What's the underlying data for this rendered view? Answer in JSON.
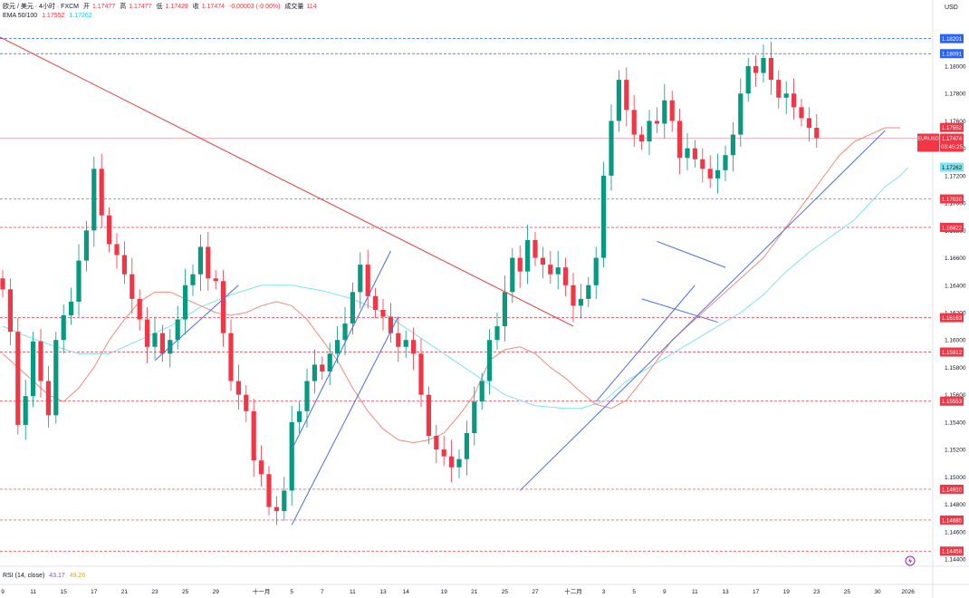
{
  "header": {
    "symbol": "欧元 / 美元 · 4小时 · FXCM",
    "open_label": "开",
    "open": "1.17477",
    "high_label": "高",
    "high": "1.17477",
    "low_label": "低",
    "low": "1.17429",
    "close_label": "收",
    "close": "1.17474",
    "change": "-0.00003 (-0.00%)",
    "volume_label": "成交量",
    "volume": "114",
    "ema_label": "EMA 50/100",
    "ema50": "1.17552",
    "ema100": "1.17262",
    "currency": "USD"
  },
  "rsi": {
    "label": "RSI (14, close)",
    "v1": "43.17",
    "v2": "49.26"
  },
  "colors": {
    "up": "#089981",
    "down": "#f23645",
    "ema50": "#f28b7c",
    "ema100": "#7fe3ee",
    "trend": "#4a6cf0",
    "downtrend": "#e83a3a",
    "blue_tag": "#2962ff"
  },
  "chart_data": {
    "type": "candlestick",
    "symbol": "EURUSD",
    "timeframe": "4小时",
    "ylim": [
      1.1435,
      1.1835
    ],
    "y_ticks": [
      "1.18000",
      "1.17800",
      "1.17600",
      "1.17400",
      "1.17200",
      "1.17000",
      "1.16800",
      "1.16600",
      "1.16400",
      "1.16200",
      "1.16000",
      "1.15800",
      "1.15600",
      "1.15400",
      "1.15200",
      "1.15000",
      "1.14800",
      "1.14600",
      "1.14400"
    ],
    "x_ticks": [
      "9",
      "11",
      "15",
      "17",
      "21",
      "23",
      "25",
      "29",
      "十一月",
      "5",
      "7",
      "11",
      "13",
      "14",
      "19",
      "21",
      "25",
      "27",
      "十二月",
      "3",
      "5",
      "9",
      "11",
      "13",
      "17",
      "19",
      "23",
      "25",
      "30",
      "2026"
    ],
    "x_tick_values": [
      0,
      4,
      8,
      12,
      16,
      20,
      24,
      28,
      34,
      38,
      42,
      46,
      50,
      53,
      58,
      62,
      66,
      70,
      75,
      79,
      83,
      87,
      91,
      95,
      99,
      103,
      107,
      111,
      115,
      119
    ],
    "current_price": {
      "symbol": "EURUSD",
      "price": "1.17474",
      "countdown": "03:45:25"
    },
    "ema_tags": [
      {
        "name": "EMA 50",
        "value": "1.17552"
      },
      {
        "name": "EMA 100",
        "value": "1.17262"
      }
    ],
    "levels": [
      {
        "value": 1.18201,
        "label": "1.18201",
        "color": "#2962ff"
      },
      {
        "value": 1.18091,
        "label": "1.18091",
        "color": "#2962ff"
      },
      {
        "value": 1.1703,
        "label": "1.17030",
        "color": "#f23645"
      },
      {
        "value": 1.16822,
        "label": "1.16822",
        "color": "#f23645"
      },
      {
        "value": 1.16163,
        "label": "1.16163",
        "color": "#f23645"
      },
      {
        "value": 1.15912,
        "label": "1.15912",
        "color": "#f23645"
      },
      {
        "value": 1.15553,
        "label": "1.15553",
        "color": "#f23645"
      },
      {
        "value": 1.1491,
        "label": "1.14910",
        "color": "#f23645"
      },
      {
        "value": 1.14685,
        "label": "1.14685",
        "color": "#f23645"
      },
      {
        "value": 1.14458,
        "label": "1.14458",
        "color": "#f23645"
      }
    ],
    "closes": [
      1.1637,
      1.1606,
      1.1538,
      1.1559,
      1.1599,
      1.157,
      1.1545,
      1.16,
      1.1618,
      1.1628,
      1.1658,
      1.168,
      1.1725,
      1.1691,
      1.167,
      1.1662,
      1.1648,
      1.163,
      1.1615,
      1.1595,
      1.1605,
      1.159,
      1.16,
      1.1615,
      1.164,
      1.1648,
      1.1668,
      1.1645,
      1.1643,
      1.1605,
      1.157,
      1.156,
      1.1548,
      1.1512,
      1.1502,
      1.1478,
      1.1475,
      1.149,
      1.154,
      1.1548,
      1.157,
      1.1582,
      1.1577,
      1.159,
      1.16,
      1.1612,
      1.1635,
      1.1655,
      1.1632,
      1.1622,
      1.1617,
      1.1605,
      1.1595,
      1.16,
      1.159,
      1.156,
      1.153,
      1.152,
      1.1515,
      1.1507,
      1.1513,
      1.1532,
      1.1555,
      1.157,
      1.16,
      1.161,
      1.1635,
      1.166,
      1.165,
      1.1673,
      1.166,
      1.1655,
      1.1648,
      1.1653,
      1.164,
      1.1625,
      1.163,
      1.164,
      1.166,
      1.172,
      1.176,
      1.179,
      1.1768,
      1.175,
      1.1745,
      1.176,
      1.1758,
      1.1775,
      1.176,
      1.1733,
      1.174,
      1.1732,
      1.1725,
      1.1718,
      1.1724,
      1.1735,
      1.175,
      1.178,
      1.18,
      1.1795,
      1.1806,
      1.179,
      1.1777,
      1.178,
      1.177,
      1.1762,
      1.1755,
      1.17474
    ],
    "ema50": [
      1.159,
      1.158,
      1.157,
      1.156,
      1.1555,
      1.1565,
      1.158,
      1.16,
      1.1615,
      1.1628,
      1.1635,
      1.1635,
      1.163,
      1.1625,
      1.162,
      1.1618,
      1.162,
      1.1625,
      1.1628,
      1.1625,
      1.1615,
      1.16,
      1.1585,
      1.1565,
      1.1548,
      1.1535,
      1.1527,
      1.1525,
      1.1527,
      1.1532,
      1.1545,
      1.156,
      1.1585,
      1.1593,
      1.1595,
      1.159,
      1.158,
      1.1572,
      1.1562,
      1.1553,
      1.155,
      1.1556,
      1.157,
      1.1585,
      1.16,
      1.161,
      1.162,
      1.163,
      1.164,
      1.165,
      1.166,
      1.1675,
      1.169,
      1.1705,
      1.172,
      1.1735,
      1.1745,
      1.175,
      1.1755,
      1.1755
    ],
    "ema50_x": [
      0,
      2,
      4,
      6,
      8,
      10,
      12,
      14,
      16,
      18,
      20,
      22,
      24,
      26,
      28,
      30,
      32,
      34,
      36,
      38,
      40,
      42,
      44,
      46,
      48,
      50,
      52,
      54,
      56,
      58,
      60,
      62,
      64,
      66,
      68,
      70,
      72,
      74,
      76,
      78,
      80,
      82,
      84,
      86,
      88,
      90,
      92,
      94,
      96,
      98,
      100,
      102,
      104,
      106,
      108,
      110,
      112,
      114,
      116,
      118
    ],
    "ema100": [
      1.161,
      1.1603,
      1.1597,
      1.159,
      1.159,
      1.16,
      1.161,
      1.1624,
      1.1633,
      1.164,
      1.164,
      1.1636,
      1.163,
      1.162,
      1.1605,
      1.159,
      1.1575,
      1.156,
      1.1552,
      1.155,
      1.155,
      1.1555,
      1.157,
      1.158,
      1.159,
      1.16,
      1.161,
      1.162,
      1.1633,
      1.165,
      1.1664,
      1.1676,
      1.1688,
      1.17,
      1.1712,
      1.172,
      1.1726
    ],
    "ema100_x": [
      0,
      3,
      6,
      10,
      14,
      18,
      22,
      26,
      30,
      34,
      38,
      42,
      46,
      50,
      54,
      58,
      62,
      66,
      70,
      74,
      76,
      79,
      82,
      85,
      88,
      91,
      94,
      97,
      100,
      103,
      106,
      109,
      112,
      114,
      116,
      118,
      119
    ],
    "trendlines": [
      {
        "kind": "downtrend",
        "x1": -1,
        "y1": 1.1823,
        "x2": 75,
        "y2": 1.161
      },
      {
        "kind": "channel",
        "x1": 20,
        "y1": 1.1585,
        "x2": 31,
        "y2": 1.164
      },
      {
        "kind": "channel",
        "x1": 38,
        "y1": 1.152,
        "x2": 51,
        "y2": 1.1665
      },
      {
        "kind": "channel",
        "x1": 38,
        "y1": 1.1465,
        "x2": 52,
        "y2": 1.1617
      },
      {
        "kind": "support",
        "x1": 68,
        "y1": 1.149,
        "x2": 116,
        "y2": 1.1753
      },
      {
        "kind": "support",
        "x1": 78,
        "y1": 1.1555,
        "x2": 91,
        "y2": 1.164
      },
      {
        "kind": "flag",
        "x1": 86,
        "y1": 1.1672,
        "x2": 95,
        "y2": 1.1653
      },
      {
        "kind": "flag",
        "x1": 84,
        "y1": 1.163,
        "x2": 94,
        "y2": 1.1613
      }
    ]
  }
}
